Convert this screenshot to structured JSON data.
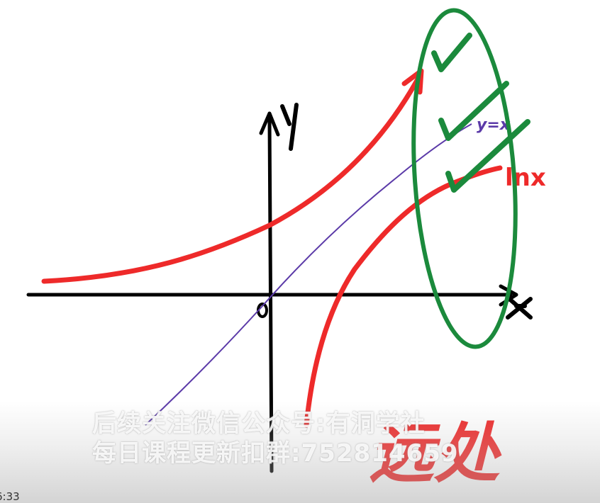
{
  "labels": {
    "y_axis": "y",
    "x_axis": "x",
    "origin": "o",
    "line_label": "y=x",
    "ln_label": "lnx",
    "handwritten": "远处"
  },
  "watermark": {
    "line1": "后续关注微信公众号:有洞学社",
    "line2": "每日课程更新扣群:752814659"
  },
  "video": {
    "timestamp": "6:33"
  },
  "colors": {
    "axis": "#000000",
    "exp_curve": "#ee2a2a",
    "identity_line": "#5b3aa8",
    "log_curve": "#ee2a2a",
    "highlight": "#1b8a3c"
  }
}
